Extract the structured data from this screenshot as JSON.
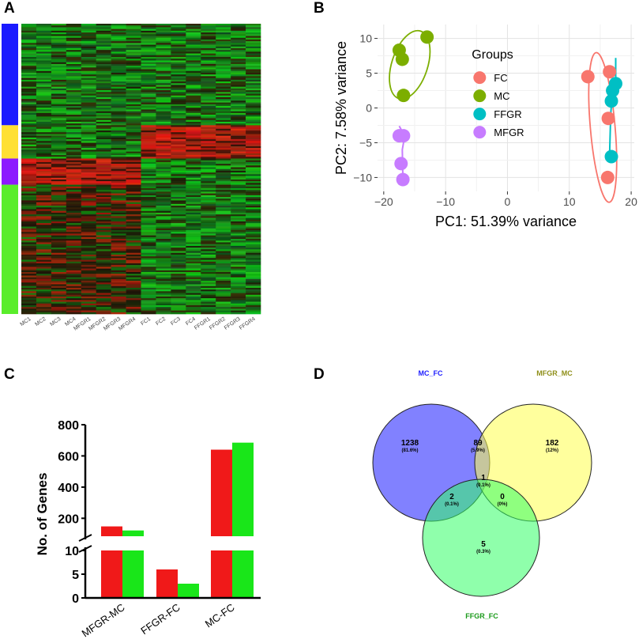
{
  "panels": {
    "a": {
      "label": "A"
    },
    "b": {
      "label": "B"
    },
    "c": {
      "label": "C"
    },
    "d": {
      "label": "D"
    }
  },
  "chart_data": [
    {
      "type": "heatmap",
      "panel": "A",
      "columns": [
        "MC1",
        "MC2",
        "MC3",
        "MC4",
        "MFGR1",
        "MFGR2",
        "MFGR3",
        "MFGR4",
        "FC1",
        "FC2",
        "FC3",
        "FC4",
        "FFGR1",
        "FFGR2",
        "FFGR3",
        "FFGR4"
      ],
      "row_clusters": [
        {
          "color": "#1a1aff",
          "weight": 128,
          "pattern": [
            "low",
            "low",
            "low",
            "low",
            "low",
            "low",
            "low",
            "low",
            "low",
            "low",
            "low",
            "low",
            "low",
            "low",
            "low",
            "low"
          ]
        },
        {
          "color": "#ffe033",
          "weight": 42,
          "pattern": [
            "low",
            "low",
            "low",
            "low",
            "low",
            "low",
            "low",
            "low",
            "high",
            "high",
            "high",
            "high",
            "high",
            "high",
            "high",
            "high"
          ]
        },
        {
          "color": "#8c1aff",
          "weight": 33,
          "pattern": [
            "high",
            "high",
            "high",
            "high",
            "high",
            "high",
            "high",
            "high",
            "low",
            "low",
            "low",
            "low",
            "low",
            "low",
            "low",
            "low"
          ]
        },
        {
          "color": "#5aed2b",
          "weight": 163,
          "pattern": [
            "mixed",
            "mixed",
            "mixed",
            "mixed",
            "mixed",
            "mixed",
            "mixed",
            "mixed",
            "low",
            "low",
            "low",
            "low",
            "low",
            "low",
            "low",
            "low"
          ]
        }
      ],
      "colors": {
        "high": "#d42a1f",
        "low": "#1fbf25",
        "mid": "#140d05"
      }
    },
    {
      "type": "scatter",
      "panel": "B",
      "xlabel": "PC1: 51.39% variance",
      "ylabel": "PC2: 7.58% variance",
      "xlim": [
        -21,
        20.5
      ],
      "ylim": [
        -12,
        12
      ],
      "xticks": [
        -20,
        -10,
        0,
        10,
        20
      ],
      "yticks": [
        -10,
        -5,
        0,
        5,
        10
      ],
      "grid": true,
      "legend": {
        "title": "Groups",
        "placement": "inside-center"
      },
      "series": [
        {
          "name": "FC",
          "color": "#f8766d",
          "points": [
            [
              13,
              4.5
            ],
            [
              16.5,
              5.2
            ],
            [
              16.3,
              -1.5
            ],
            [
              16.2,
              -10
            ]
          ]
        },
        {
          "name": "MC",
          "color": "#7cae00",
          "points": [
            [
              -13,
              10.2
            ],
            [
              -17.5,
              8.3
            ],
            [
              -17,
              7
            ],
            [
              -16.8,
              1.8
            ]
          ]
        },
        {
          "name": "FFGR",
          "color": "#00bfc4",
          "points": [
            [
              17.5,
              3.5
            ],
            [
              17,
              2.5
            ],
            [
              16.8,
              1
            ],
            [
              16.8,
              -7
            ]
          ]
        },
        {
          "name": "MFGR",
          "color": "#c77cff",
          "points": [
            [
              -17.5,
              -4
            ],
            [
              -16.8,
              -4
            ],
            [
              -17.2,
              -8
            ],
            [
              -16.9,
              -10.3
            ]
          ]
        }
      ],
      "ellipses": [
        {
          "group": "MC",
          "center": [
            -15.8,
            6.2
          ],
          "semi_axes": [
            2.9,
            5.1
          ],
          "tilt_deg": 18
        },
        {
          "group": "FC",
          "center": [
            15.4,
            -2.8
          ],
          "semi_axes": [
            2.0,
            10.8
          ],
          "tilt_deg": -5
        },
        {
          "group": "FFGR",
          "polyline": [
            [
              17.5,
              7.2
            ],
            [
              17.5,
              3.8
            ],
            [
              17,
              2.6
            ],
            [
              16.7,
              -0.8
            ],
            [
              16.5,
              -7
            ]
          ]
        },
        {
          "group": "MFGR",
          "polyline": [
            [
              -17.5,
              -2.6
            ],
            [
              -16.6,
              -4
            ],
            [
              -17,
              -6
            ],
            [
              -16.9,
              -10.3
            ]
          ]
        }
      ]
    },
    {
      "type": "bar",
      "panel": "C",
      "categories": [
        "MFGR-MC",
        "FFGR-FC",
        "MC-FC"
      ],
      "series": [
        {
          "name": "red",
          "color": "#f01919",
          "values": [
            148,
            6,
            640
          ]
        },
        {
          "name": "green",
          "color": "#19e619",
          "values": [
            122,
            3,
            685
          ]
        }
      ],
      "ylabel": "No. of Genes",
      "y_axis_break": true,
      "lower_segment": {
        "ylim": [
          0,
          10
        ],
        "ticks": [
          0,
          5,
          10
        ]
      },
      "upper_segment": {
        "ylim": [
          85,
          800
        ],
        "ticks": [
          200,
          400,
          600,
          800
        ]
      }
    },
    {
      "type": "venn",
      "panel": "D",
      "sets": [
        {
          "name": "MC_FC",
          "color": "#1a1aff",
          "label_color": "#1f1fff"
        },
        {
          "name": "MFGR_MC",
          "color": "#ffff4d",
          "label_color": "#8f8f1a"
        },
        {
          "name": "FFGR_FC",
          "color": "#33ff66",
          "label_color": "#1a9a1a"
        }
      ],
      "regions": [
        {
          "sets": [
            "MC_FC"
          ],
          "count": "1238",
          "pct": "(81.6%)"
        },
        {
          "sets": [
            "MC_FC",
            "MFGR_MC"
          ],
          "count": "89",
          "pct": "(5.9%)"
        },
        {
          "sets": [
            "MFGR_MC"
          ],
          "count": "182",
          "pct": "(12%)"
        },
        {
          "sets": [
            "MC_FC",
            "MFGR_MC",
            "FFGR_FC"
          ],
          "count": "1",
          "pct": "(0.1%)"
        },
        {
          "sets": [
            "MC_FC",
            "FFGR_FC"
          ],
          "count": "2",
          "pct": "(0.1%)"
        },
        {
          "sets": [
            "MFGR_MC",
            "FFGR_FC"
          ],
          "count": "0",
          "pct": "(0%)"
        },
        {
          "sets": [
            "FFGR_FC"
          ],
          "count": "5",
          "pct": "(0.3%)"
        }
      ]
    }
  ]
}
